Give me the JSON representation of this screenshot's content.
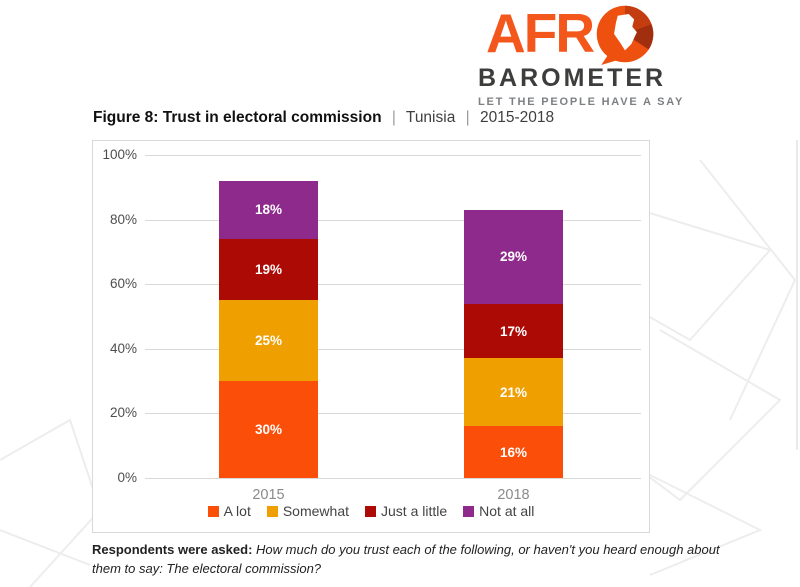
{
  "logo": {
    "word_part": "AFR",
    "barometer": "BAROMETER",
    "tagline": "LET THE PEOPLE HAVE A SAY",
    "orange": "#F4571C",
    "dark_text": "#3D3D3C",
    "gray_text": "#7D7F82"
  },
  "title": {
    "figure": "Figure 8: Trust in electoral commission",
    "separator": "|",
    "country": "Tunisia",
    "years": "2015-2018"
  },
  "chart_data": {
    "type": "bar",
    "stacked": true,
    "title": "Figure 8: Trust in electoral commission | Tunisia | 2015-2018",
    "categories": [
      "2015",
      "2018"
    ],
    "series": [
      {
        "name": "A lot",
        "color": "#FB4E09",
        "values": [
          30,
          16
        ],
        "labels": [
          "30%",
          "16%"
        ]
      },
      {
        "name": "Somewhat",
        "color": "#EF9F00",
        "values": [
          25,
          21
        ],
        "labels": [
          "25%",
          "21%"
        ]
      },
      {
        "name": "Just a little",
        "color": "#AC0A05",
        "values": [
          19,
          17
        ],
        "labels": [
          "19%",
          "17%"
        ]
      },
      {
        "name": "Not at all",
        "color": "#8E2A8C",
        "values": [
          18,
          29
        ],
        "labels": [
          "18%",
          "29%"
        ]
      }
    ],
    "totals": [
      92,
      83
    ],
    "ylim": [
      0,
      100
    ],
    "yticks": [
      {
        "value": 0,
        "label": "0%"
      },
      {
        "value": 20,
        "label": "20%"
      },
      {
        "value": 40,
        "label": "40%"
      },
      {
        "value": 60,
        "label": "60%"
      },
      {
        "value": 80,
        "label": "80%"
      },
      {
        "value": 100,
        "label": "100%"
      }
    ],
    "grid": true,
    "legend_position": "bottom"
  },
  "caption": {
    "bold": "Respondents were asked",
    "colon": ": ",
    "question": "How much do you trust each of the following, or haven't you heard enough about them to say: The electoral commission?"
  }
}
